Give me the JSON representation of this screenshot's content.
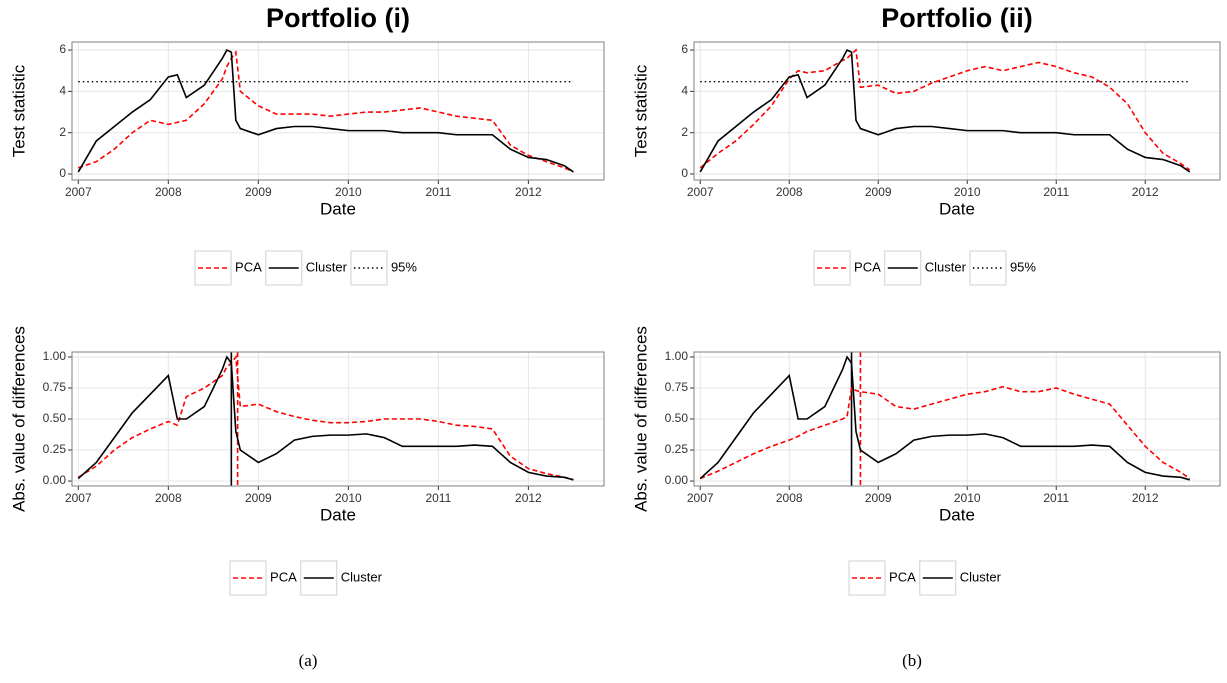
{
  "chart_data": [
    {
      "type": "line",
      "title": "Portfolio (i)",
      "x_label": "Date",
      "y_label": "Test statistic",
      "x": [
        2007.0,
        2007.2,
        2007.4,
        2007.6,
        2007.8,
        2008.0,
        2008.1,
        2008.2,
        2008.4,
        2008.6,
        2008.65,
        2008.7,
        2008.75,
        2008.8,
        2009.0,
        2009.2,
        2009.4,
        2009.6,
        2009.8,
        2010.0,
        2010.2,
        2010.4,
        2010.6,
        2010.8,
        2011.0,
        2011.2,
        2011.4,
        2011.6,
        2011.8,
        2012.0,
        2012.2,
        2012.4,
        2012.5
      ],
      "series": [
        {
          "name": "PCA",
          "color": "#ff0000",
          "dash": true,
          "values": [
            0.3,
            0.6,
            1.2,
            2.0,
            2.6,
            2.4,
            2.5,
            2.6,
            3.4,
            4.6,
            5.2,
            5.6,
            5.9,
            4.0,
            3.3,
            2.9,
            2.9,
            2.9,
            2.8,
            2.9,
            3.0,
            3.0,
            3.1,
            3.2,
            3.0,
            2.8,
            2.7,
            2.6,
            1.4,
            0.9,
            0.6,
            0.3,
            0.1
          ]
        },
        {
          "name": "Cluster",
          "color": "#000000",
          "dash": false,
          "values": [
            0.1,
            1.6,
            2.3,
            3.0,
            3.6,
            4.7,
            4.8,
            3.7,
            4.3,
            5.6,
            6.0,
            5.9,
            2.6,
            2.2,
            1.9,
            2.2,
            2.3,
            2.3,
            2.2,
            2.1,
            2.1,
            2.1,
            2.0,
            2.0,
            2.0,
            1.9,
            1.9,
            1.9,
            1.2,
            0.8,
            0.7,
            0.4,
            0.1
          ]
        }
      ],
      "hline": {
        "name": "95%",
        "value": 4.47,
        "color": "#000000"
      },
      "xlim": [
        2006.93,
        2012.84
      ],
      "xticks": [
        2007,
        2008,
        2009,
        2010,
        2011,
        2012
      ],
      "ylim": [
        -0.29,
        6.39
      ],
      "yticks": [
        0,
        2,
        4,
        6
      ],
      "grid": true
    },
    {
      "type": "line",
      "title": "Portfolio (ii)",
      "x_label": "Date",
      "y_label": "Test statistic",
      "x": [
        2007.0,
        2007.2,
        2007.4,
        2007.6,
        2007.8,
        2008.0,
        2008.1,
        2008.2,
        2008.4,
        2008.6,
        2008.65,
        2008.7,
        2008.75,
        2008.8,
        2009.0,
        2009.2,
        2009.4,
        2009.6,
        2009.8,
        2010.0,
        2010.2,
        2010.4,
        2010.6,
        2010.8,
        2011.0,
        2011.2,
        2011.4,
        2011.6,
        2011.8,
        2012.0,
        2012.2,
        2012.4,
        2012.5
      ],
      "series": [
        {
          "name": "PCA",
          "color": "#ff0000",
          "dash": true,
          "values": [
            0.3,
            1.0,
            1.6,
            2.4,
            3.3,
            4.6,
            5.0,
            4.9,
            5.0,
            5.5,
            5.6,
            5.8,
            6.0,
            4.2,
            4.3,
            3.9,
            4.0,
            4.4,
            4.7,
            5.0,
            5.2,
            5.0,
            5.2,
            5.4,
            5.2,
            4.9,
            4.7,
            4.2,
            3.4,
            2.0,
            1.0,
            0.5,
            0.2
          ]
        },
        {
          "name": "Cluster",
          "color": "#000000",
          "dash": false,
          "values": [
            0.1,
            1.6,
            2.3,
            3.0,
            3.6,
            4.7,
            4.8,
            3.7,
            4.3,
            5.6,
            6.0,
            5.9,
            2.6,
            2.2,
            1.9,
            2.2,
            2.3,
            2.3,
            2.2,
            2.1,
            2.1,
            2.1,
            2.0,
            2.0,
            2.0,
            1.9,
            1.9,
            1.9,
            1.2,
            0.8,
            0.7,
            0.4,
            0.1
          ]
        }
      ],
      "hline": {
        "name": "95%",
        "value": 4.47,
        "color": "#000000"
      },
      "xlim": [
        2006.93,
        2012.84
      ],
      "xticks": [
        2007,
        2008,
        2009,
        2010,
        2011,
        2012
      ],
      "ylim": [
        -0.29,
        6.39
      ],
      "yticks": [
        0,
        2,
        4,
        6
      ],
      "grid": true
    },
    {
      "type": "line",
      "x_label": "Date",
      "y_label": "Abs. value of differences",
      "x": [
        2007.0,
        2007.2,
        2007.4,
        2007.6,
        2007.8,
        2008.0,
        2008.1,
        2008.2,
        2008.4,
        2008.6,
        2008.65,
        2008.7,
        2008.75,
        2008.8,
        2009.0,
        2009.2,
        2009.4,
        2009.6,
        2009.8,
        2010.0,
        2010.2,
        2010.4,
        2010.6,
        2010.8,
        2011.0,
        2011.2,
        2011.4,
        2011.6,
        2011.8,
        2012.0,
        2012.2,
        2012.4,
        2012.5
      ],
      "series": [
        {
          "name": "PCA",
          "color": "#ff0000",
          "dash": true,
          "values": [
            0.03,
            0.12,
            0.25,
            0.35,
            0.42,
            0.48,
            0.45,
            0.68,
            0.75,
            0.85,
            0.92,
            0.95,
            1.0,
            0.6,
            0.62,
            0.56,
            0.52,
            0.49,
            0.47,
            0.47,
            0.48,
            0.5,
            0.5,
            0.5,
            0.48,
            0.45,
            0.44,
            0.42,
            0.2,
            0.1,
            0.06,
            0.03,
            0.01
          ]
        },
        {
          "name": "Cluster",
          "color": "#000000",
          "dash": false,
          "values": [
            0.02,
            0.15,
            0.35,
            0.55,
            0.7,
            0.85,
            0.5,
            0.5,
            0.6,
            0.9,
            1.0,
            0.95,
            0.4,
            0.25,
            0.15,
            0.22,
            0.33,
            0.36,
            0.37,
            0.37,
            0.38,
            0.35,
            0.28,
            0.28,
            0.28,
            0.28,
            0.29,
            0.28,
            0.15,
            0.07,
            0.04,
            0.03,
            0.01
          ]
        }
      ],
      "vlines": [
        {
          "x": 2008.7,
          "color": "#000000",
          "dash": false
        },
        {
          "x": 2008.77,
          "color": "#ff0000",
          "dash": true
        }
      ],
      "xlim": [
        2006.93,
        2012.84
      ],
      "xticks": [
        2007,
        2008,
        2009,
        2010,
        2011,
        2012
      ],
      "ylim": [
        -0.04,
        1.04
      ],
      "yticks": [
        {
          "value": 0,
          "label": "0.00"
        },
        {
          "value": 0.25,
          "label": "0.25"
        },
        {
          "value": 0.5,
          "label": "0.50"
        },
        {
          "value": 0.75,
          "label": "0.75"
        },
        {
          "value": 1,
          "label": "1.00"
        }
      ],
      "grid": true
    },
    {
      "type": "line",
      "x_label": "Date",
      "y_label": "Abs. value of differences",
      "x": [
        2007.0,
        2007.2,
        2007.4,
        2007.6,
        2007.8,
        2008.0,
        2008.1,
        2008.2,
        2008.4,
        2008.6,
        2008.65,
        2008.7,
        2008.75,
        2008.8,
        2009.0,
        2009.2,
        2009.4,
        2009.6,
        2009.8,
        2010.0,
        2010.2,
        2010.4,
        2010.6,
        2010.8,
        2011.0,
        2011.2,
        2011.4,
        2011.6,
        2011.8,
        2012.0,
        2012.2,
        2012.4,
        2012.5
      ],
      "series": [
        {
          "name": "PCA",
          "color": "#ff0000",
          "dash": true,
          "values": [
            0.02,
            0.08,
            0.15,
            0.22,
            0.28,
            0.33,
            0.36,
            0.4,
            0.45,
            0.5,
            0.52,
            0.75,
            0.73,
            0.72,
            0.7,
            0.6,
            0.58,
            0.62,
            0.66,
            0.7,
            0.72,
            0.76,
            0.72,
            0.72,
            0.75,
            0.7,
            0.66,
            0.62,
            0.45,
            0.28,
            0.15,
            0.07,
            0.02
          ]
        },
        {
          "name": "Cluster",
          "color": "#000000",
          "dash": false,
          "values": [
            0.02,
            0.15,
            0.35,
            0.55,
            0.7,
            0.85,
            0.5,
            0.5,
            0.6,
            0.9,
            1.0,
            0.95,
            0.4,
            0.25,
            0.15,
            0.22,
            0.33,
            0.36,
            0.37,
            0.37,
            0.38,
            0.35,
            0.28,
            0.28,
            0.28,
            0.28,
            0.29,
            0.28,
            0.15,
            0.07,
            0.04,
            0.03,
            0.01
          ]
        }
      ],
      "vlines": [
        {
          "x": 2008.7,
          "color": "#000000",
          "dash": false
        },
        {
          "x": 2008.8,
          "color": "#ff0000",
          "dash": true
        }
      ],
      "xlim": [
        2006.93,
        2012.84
      ],
      "xticks": [
        2007,
        2008,
        2009,
        2010,
        2011,
        2012
      ],
      "ylim": [
        -0.04,
        1.04
      ],
      "yticks": [
        {
          "value": 0,
          "label": "0.00"
        },
        {
          "value": 0.25,
          "label": "0.25"
        },
        {
          "value": 0.5,
          "label": "0.50"
        },
        {
          "value": 0.75,
          "label": "0.75"
        },
        {
          "value": 1,
          "label": "1.00"
        }
      ],
      "grid": true
    }
  ],
  "captions": [
    "(a)",
    "(b)"
  ]
}
